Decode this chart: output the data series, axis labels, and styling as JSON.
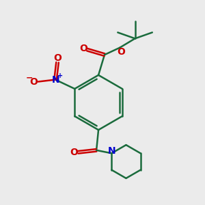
{
  "background_color": "#ebebeb",
  "bond_color": "#1a6b3c",
  "bond_width": 1.8,
  "atom_colors": {
    "O": "#cc0000",
    "N": "#0000cc",
    "C": "#1a6b3c"
  },
  "figsize": [
    3.0,
    3.0
  ],
  "dpi": 100,
  "xlim": [
    0,
    10
  ],
  "ylim": [
    0,
    10
  ]
}
